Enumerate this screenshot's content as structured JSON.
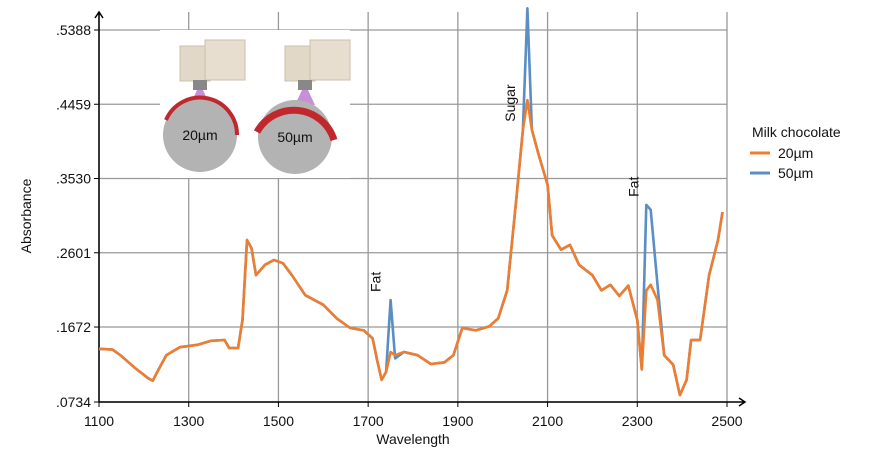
{
  "chart_data": {
    "type": "line",
    "x_label": "Wavelength",
    "y_label": "Absorbance",
    "legend_title": "Milk chocolate",
    "legend_position": "right",
    "grid": true,
    "x": [
      1100,
      1130,
      1150,
      1180,
      1210,
      1220,
      1230,
      1250,
      1280,
      1320,
      1350,
      1380,
      1390,
      1410,
      1420,
      1430,
      1440,
      1450,
      1470,
      1490,
      1510,
      1530,
      1560,
      1600,
      1630,
      1660,
      1690,
      1710,
      1720,
      1730,
      1740,
      1750,
      1760,
      1780,
      1810,
      1840,
      1870,
      1890,
      1910,
      1940,
      1970,
      1990,
      2010,
      2030,
      2045,
      2055,
      2065,
      2080,
      2100,
      2110,
      2130,
      2150,
      2170,
      2200,
      2220,
      2240,
      2260,
      2280,
      2300,
      2310,
      2320,
      2330,
      2345,
      2360,
      2380,
      2395,
      2410,
      2420,
      2440,
      2460,
      2480,
      2490
    ],
    "series": [
      {
        "name": "20µm",
        "color": "#ed7d31",
        "values": [
          0.14,
          0.139,
          0.131,
          0.116,
          0.103,
          0.1,
          0.111,
          0.132,
          0.142,
          0.145,
          0.15,
          0.151,
          0.141,
          0.141,
          0.176,
          0.276,
          0.266,
          0.232,
          0.245,
          0.251,
          0.247,
          0.232,
          0.207,
          0.195,
          0.178,
          0.166,
          0.163,
          0.153,
          0.126,
          0.101,
          0.111,
          0.136,
          0.132,
          0.136,
          0.132,
          0.121,
          0.123,
          0.132,
          0.166,
          0.163,
          0.168,
          0.178,
          0.213,
          0.326,
          0.414,
          0.451,
          0.414,
          0.383,
          0.345,
          0.282,
          0.264,
          0.27,
          0.245,
          0.232,
          0.213,
          0.22,
          0.206,
          0.219,
          0.176,
          0.114,
          0.213,
          0.22,
          0.201,
          0.132,
          0.12,
          0.082,
          0.101,
          0.151,
          0.151,
          0.232,
          0.276,
          0.311
        ]
      },
      {
        "name": "50µm",
        "color": "#5b8ec4",
        "values": [
          0.14,
          0.139,
          0.131,
          0.116,
          0.103,
          0.1,
          0.111,
          0.132,
          0.142,
          0.145,
          0.15,
          0.151,
          0.141,
          0.141,
          0.176,
          0.276,
          0.266,
          0.232,
          0.245,
          0.251,
          0.247,
          0.232,
          0.207,
          0.195,
          0.178,
          0.166,
          0.163,
          0.153,
          0.126,
          0.101,
          0.111,
          0.201,
          0.128,
          0.136,
          0.132,
          0.121,
          0.123,
          0.132,
          0.166,
          0.163,
          0.168,
          0.178,
          0.213,
          0.326,
          0.414,
          0.566,
          0.414,
          0.383,
          0.345,
          0.282,
          0.264,
          0.27,
          0.245,
          0.232,
          0.213,
          0.22,
          0.206,
          0.219,
          0.176,
          0.114,
          0.32,
          0.314,
          0.22,
          0.132,
          0.12,
          0.082,
          0.101,
          0.151,
          0.151,
          0.232,
          0.276,
          0.311
        ]
      }
    ],
    "xlim": [
      1100,
      2500
    ],
    "xticks": [
      1100,
      1300,
      1500,
      1700,
      1900,
      2100,
      2300,
      2500
    ],
    "ylim": [
      0.0734,
      0.5388
    ],
    "yticks": [
      {
        "value": 0.0734,
        "label": ".0734"
      },
      {
        "value": 0.1672,
        "label": ".1672"
      },
      {
        "value": 0.2601,
        "label": ".2601"
      },
      {
        "value": 0.353,
        "label": ".3530"
      },
      {
        "value": 0.4459,
        "label": ".4459"
      },
      {
        "value": 0.5388,
        "label": ".5388"
      }
    ],
    "annotations": [
      {
        "text": "Fat",
        "x": 1750
      },
      {
        "text": "Sugar",
        "x": 2050
      },
      {
        "text": "Fat",
        "x": 2325
      }
    ],
    "inset_labels": [
      "20µm",
      "50µm"
    ]
  }
}
